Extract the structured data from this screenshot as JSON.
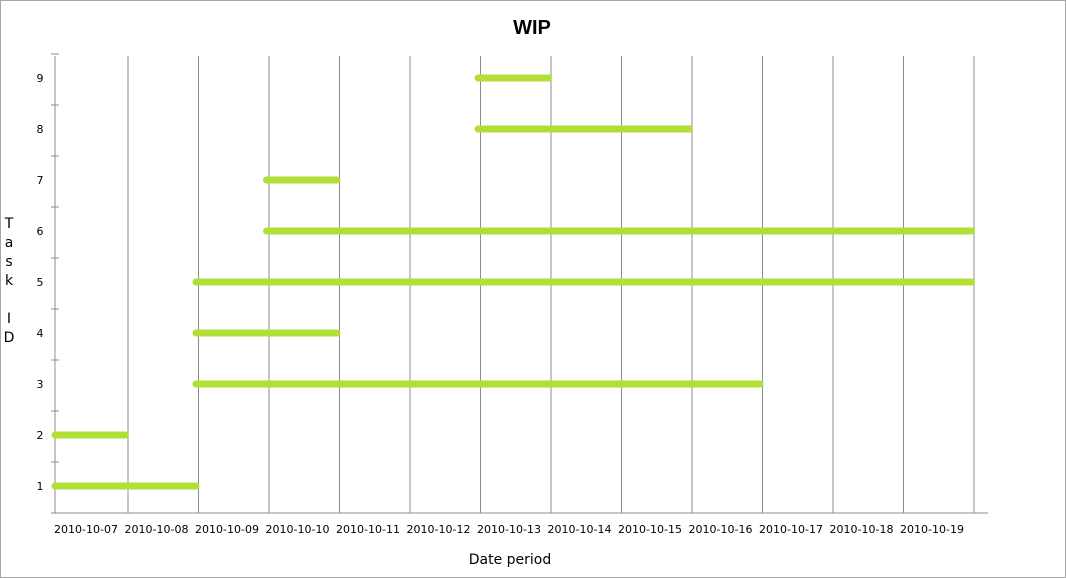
{
  "chart_data": {
    "type": "gantt",
    "title": "WIP",
    "xlabel": "Date period",
    "ylabel": "Task ID",
    "x_categories": [
      "2010-10-07",
      "2010-10-08",
      "2010-10-09",
      "2010-10-10",
      "2010-10-11",
      "2010-10-12",
      "2010-10-13",
      "2010-10-14",
      "2010-10-15",
      "2010-10-16",
      "2010-10-17",
      "2010-10-18",
      "2010-10-19"
    ],
    "y_ticks": [
      "1",
      "2",
      "3",
      "4",
      "5",
      "6",
      "7",
      "8",
      "9"
    ],
    "color": "#b2df35",
    "tasks": [
      {
        "id": 1,
        "start": "2010-10-07",
        "end": "2010-10-09"
      },
      {
        "id": 2,
        "start": "2010-10-07",
        "end": "2010-10-08"
      },
      {
        "id": 3,
        "start": "2010-10-09",
        "end": "2010-10-17"
      },
      {
        "id": 4,
        "start": "2010-10-09",
        "end": "2010-10-11"
      },
      {
        "id": 5,
        "start": "2010-10-09",
        "end": "2010-10-20"
      },
      {
        "id": 6,
        "start": "2010-10-10",
        "end": "2010-10-20"
      },
      {
        "id": 7,
        "start": "2010-10-10",
        "end": "2010-10-11"
      },
      {
        "id": 8,
        "start": "2010-10-13",
        "end": "2010-10-16"
      },
      {
        "id": 9,
        "start": "2010-10-13",
        "end": "2010-10-14"
      }
    ],
    "grid": true,
    "legend": "none"
  }
}
